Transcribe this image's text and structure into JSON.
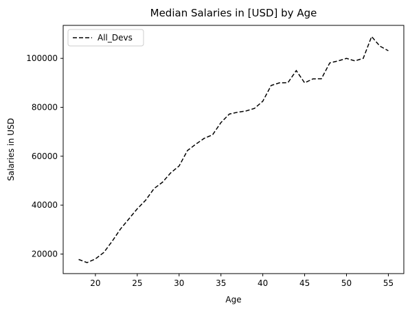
{
  "chart_data": {
    "type": "line",
    "title": "Median Salaries in [USD] by Age",
    "xlabel": "Age",
    "ylabel": "Salaries in USD",
    "xlim": [
      16.15,
      56.85
    ],
    "ylim": [
      12000,
      113500
    ],
    "x_ticks": [
      20,
      25,
      30,
      35,
      40,
      45,
      50,
      55
    ],
    "y_ticks": [
      20000,
      40000,
      60000,
      80000,
      100000
    ],
    "grid": false,
    "legend_position": "top-left",
    "x": [
      18,
      19,
      20,
      21,
      22,
      23,
      24,
      25,
      26,
      27,
      28,
      29,
      30,
      31,
      32,
      33,
      34,
      35,
      36,
      37,
      38,
      39,
      40,
      41,
      42,
      43,
      44,
      45,
      46,
      47,
      48,
      49,
      50,
      51,
      52,
      53,
      54,
      55
    ],
    "series": [
      {
        "name": "All_Devs",
        "color": "#000000",
        "linestyle": "dashed",
        "values": [
          17784,
          16500,
          18012,
          20628,
          25206,
          30252,
          34368,
          38496,
          42000,
          46752,
          49320,
          53200,
          56000,
          62316,
          64928,
          67317,
          68748,
          73752,
          77232,
          78000,
          78508,
          79536,
          82488,
          88935,
          90000,
          90056,
          95000,
          90000,
          91633,
          91660,
          98150,
          98964,
          100000,
          98988,
          100000,
          108923,
          105000,
          103117
        ]
      }
    ]
  }
}
